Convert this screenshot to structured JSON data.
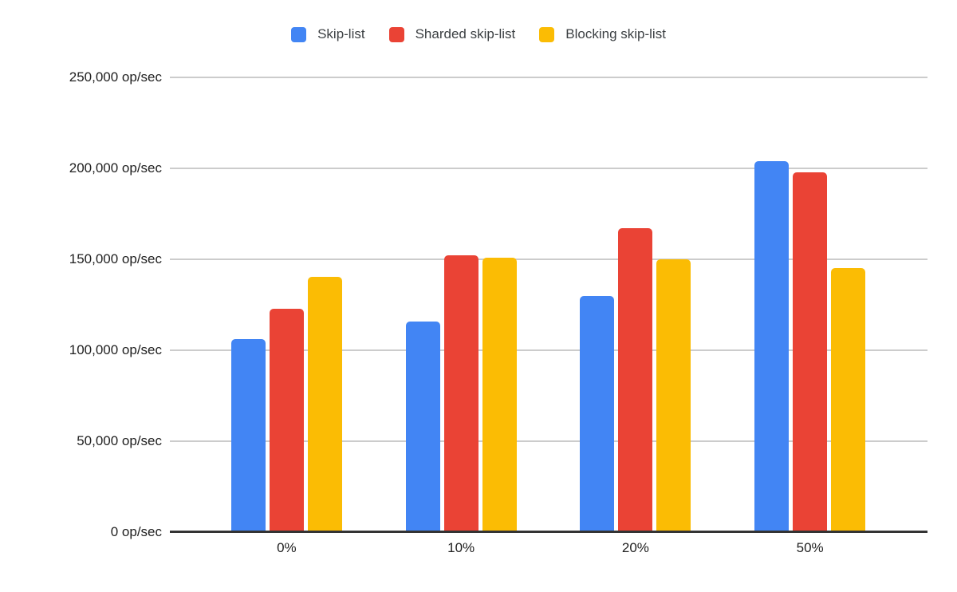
{
  "chart_data": {
    "type": "bar",
    "title": "",
    "categories": [
      "0%",
      "10%",
      "20%",
      "50%"
    ],
    "series": [
      {
        "name": "Skip-list",
        "color": "#4285F4",
        "values": [
          106000,
          116000,
          130000,
          204000
        ]
      },
      {
        "name": "Sharded skip-list",
        "color": "#EA4335",
        "values": [
          123000,
          152000,
          167000,
          198000
        ]
      },
      {
        "name": "Blocking skip-list",
        "color": "#FBBC04",
        "values": [
          140500,
          151000,
          150000,
          145000
        ]
      }
    ],
    "y_unit": "op/sec",
    "y_ticks": [
      0,
      50000,
      100000,
      150000,
      200000,
      250000
    ],
    "y_tick_labels": [
      "0 op/sec",
      "50,000 op/sec",
      "100,000 op/sec",
      "150,000 op/sec",
      "200,000 op/sec",
      "250,000 op/sec"
    ],
    "ylim": [
      0,
      250000
    ],
    "xlabel": "",
    "ylabel": "",
    "grid": true,
    "legend_position": "top",
    "gridline_color": "#cccccc",
    "axis_line_color": "#333333",
    "label_color": "#212121"
  }
}
